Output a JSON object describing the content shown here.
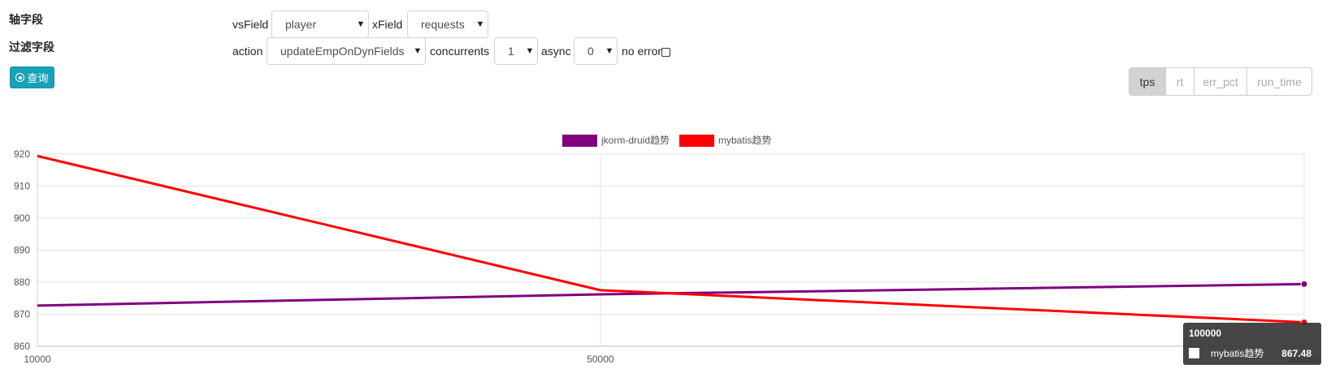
{
  "form": {
    "axis_field_label": "轴字段",
    "filter_field_label": "过滤字段",
    "query_button": "查询",
    "vsfield_label": "vsField",
    "vsfield_value": "player",
    "xfield_label": "xField",
    "xfield_value": "requests",
    "action_label": "action",
    "action_value": "updateEmpOnDynFields",
    "concurrents_label": "concurrents",
    "concurrents_value": "1",
    "async_label": "async",
    "async_value": "0",
    "no_error_label": "no error",
    "no_error_checked": false
  },
  "metric_tabs": [
    "tps",
    "rt",
    "err_pct",
    "run_time"
  ],
  "active_metric": "tps",
  "chart_data": {
    "type": "line",
    "x": [
      10000,
      50000,
      100000
    ],
    "x_ticks": [
      "10000",
      "50000",
      "100000"
    ],
    "y_ticks": [
      "860",
      "870",
      "880",
      "890",
      "900",
      "910",
      "920"
    ],
    "ylim": [
      860,
      920
    ],
    "grid": true,
    "legend_position": "top-center",
    "series": [
      {
        "name": "jkorm-druid趋势",
        "color": "#800080",
        "values": [
          872.7,
          876.2,
          879.4
        ]
      },
      {
        "name": "mybatis趋势",
        "color": "#ff0000",
        "values": [
          919.4,
          877.5,
          867.48
        ]
      }
    ],
    "tooltip": {
      "title": "100000",
      "series_name": "mybatis趋势",
      "value": "867.48"
    }
  }
}
